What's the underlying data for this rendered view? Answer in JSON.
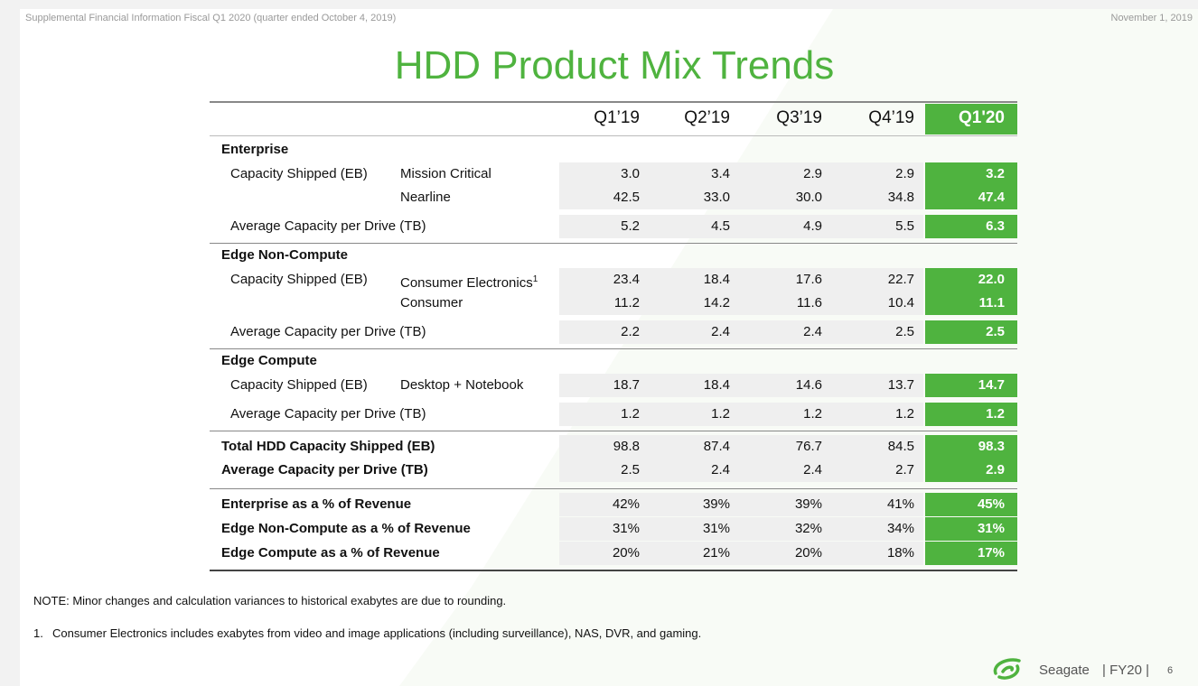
{
  "header": {
    "left": "Supplemental Financial Information Fiscal Q1 2020 (quarter ended October 4, 2019)",
    "right": "November 1, 2019"
  },
  "title": "HDD Product Mix Trends",
  "table": {
    "columns": [
      "Q1’19",
      "Q2’19",
      "Q3’19",
      "Q4’19",
      "Q1'20"
    ],
    "sections": [
      {
        "name": "Enterprise",
        "rows": [
          {
            "label": "Capacity Shipped (EB)",
            "sub": "Mission Critical",
            "values": [
              "3.0",
              "3.4",
              "2.9",
              "2.9",
              "3.2"
            ]
          },
          {
            "sub": "Nearline",
            "values": [
              "42.5",
              "33.0",
              "30.0",
              "34.8",
              "47.4"
            ]
          },
          {
            "label": "Average Capacity per Drive (TB)",
            "values": [
              "5.2",
              "4.5",
              "4.9",
              "5.5",
              "6.3"
            ]
          }
        ]
      },
      {
        "name": "Edge Non-Compute",
        "rows": [
          {
            "label": "Capacity Shipped (EB)",
            "sub": "Consumer Electronics",
            "sup": "1",
            "values": [
              "23.4",
              "18.4",
              "17.6",
              "22.7",
              "22.0"
            ]
          },
          {
            "sub": "Consumer",
            "values": [
              "11.2",
              "14.2",
              "11.6",
              "10.4",
              "11.1"
            ]
          },
          {
            "label": "Average Capacity per Drive (TB)",
            "values": [
              "2.2",
              "2.4",
              "2.4",
              "2.5",
              "2.5"
            ]
          }
        ]
      },
      {
        "name": "Edge Compute",
        "rows": [
          {
            "label": "Capacity Shipped (EB)",
            "sub": "Desktop + Notebook",
            "values": [
              "18.7",
              "18.4",
              "14.6",
              "13.7",
              "14.7"
            ]
          },
          {
            "label": "Average Capacity per Drive (TB)",
            "values": [
              "1.2",
              "1.2",
              "1.2",
              "1.2",
              "1.2"
            ]
          }
        ]
      },
      {
        "rows": [
          {
            "label": "Total  HDD Capacity Shipped (EB)",
            "values": [
              "98.8",
              "87.4",
              "76.7",
              "84.5",
              "98.3"
            ]
          },
          {
            "label": "Average Capacity per Drive (TB)",
            "values": [
              "2.5",
              "2.4",
              "2.4",
              "2.7",
              "2.9"
            ]
          }
        ]
      },
      {
        "rows": [
          {
            "label": "Enterprise as a % of Revenue",
            "values": [
              "42%",
              "39%",
              "39%",
              "41%",
              "45%"
            ]
          },
          {
            "label": "Edge Non-Compute as a % of Revenue",
            "values": [
              "31%",
              "31%",
              "32%",
              "34%",
              "31%"
            ]
          },
          {
            "label": "Edge Compute as a % of Revenue",
            "values": [
              "20%",
              "21%",
              "20%",
              "18%",
              "17%"
            ]
          }
        ]
      }
    ]
  },
  "note": "NOTE: Minor changes and calculation variances to historical exabytes are due to rounding.",
  "footnote": {
    "number": "1.",
    "text": "Consumer Electronics includes exabytes from video and image applications (including surveillance), NAS, DVR, and gaming."
  },
  "footer": {
    "brand": "Seagate",
    "fiscal": "| FY20 |",
    "page": "6"
  }
}
